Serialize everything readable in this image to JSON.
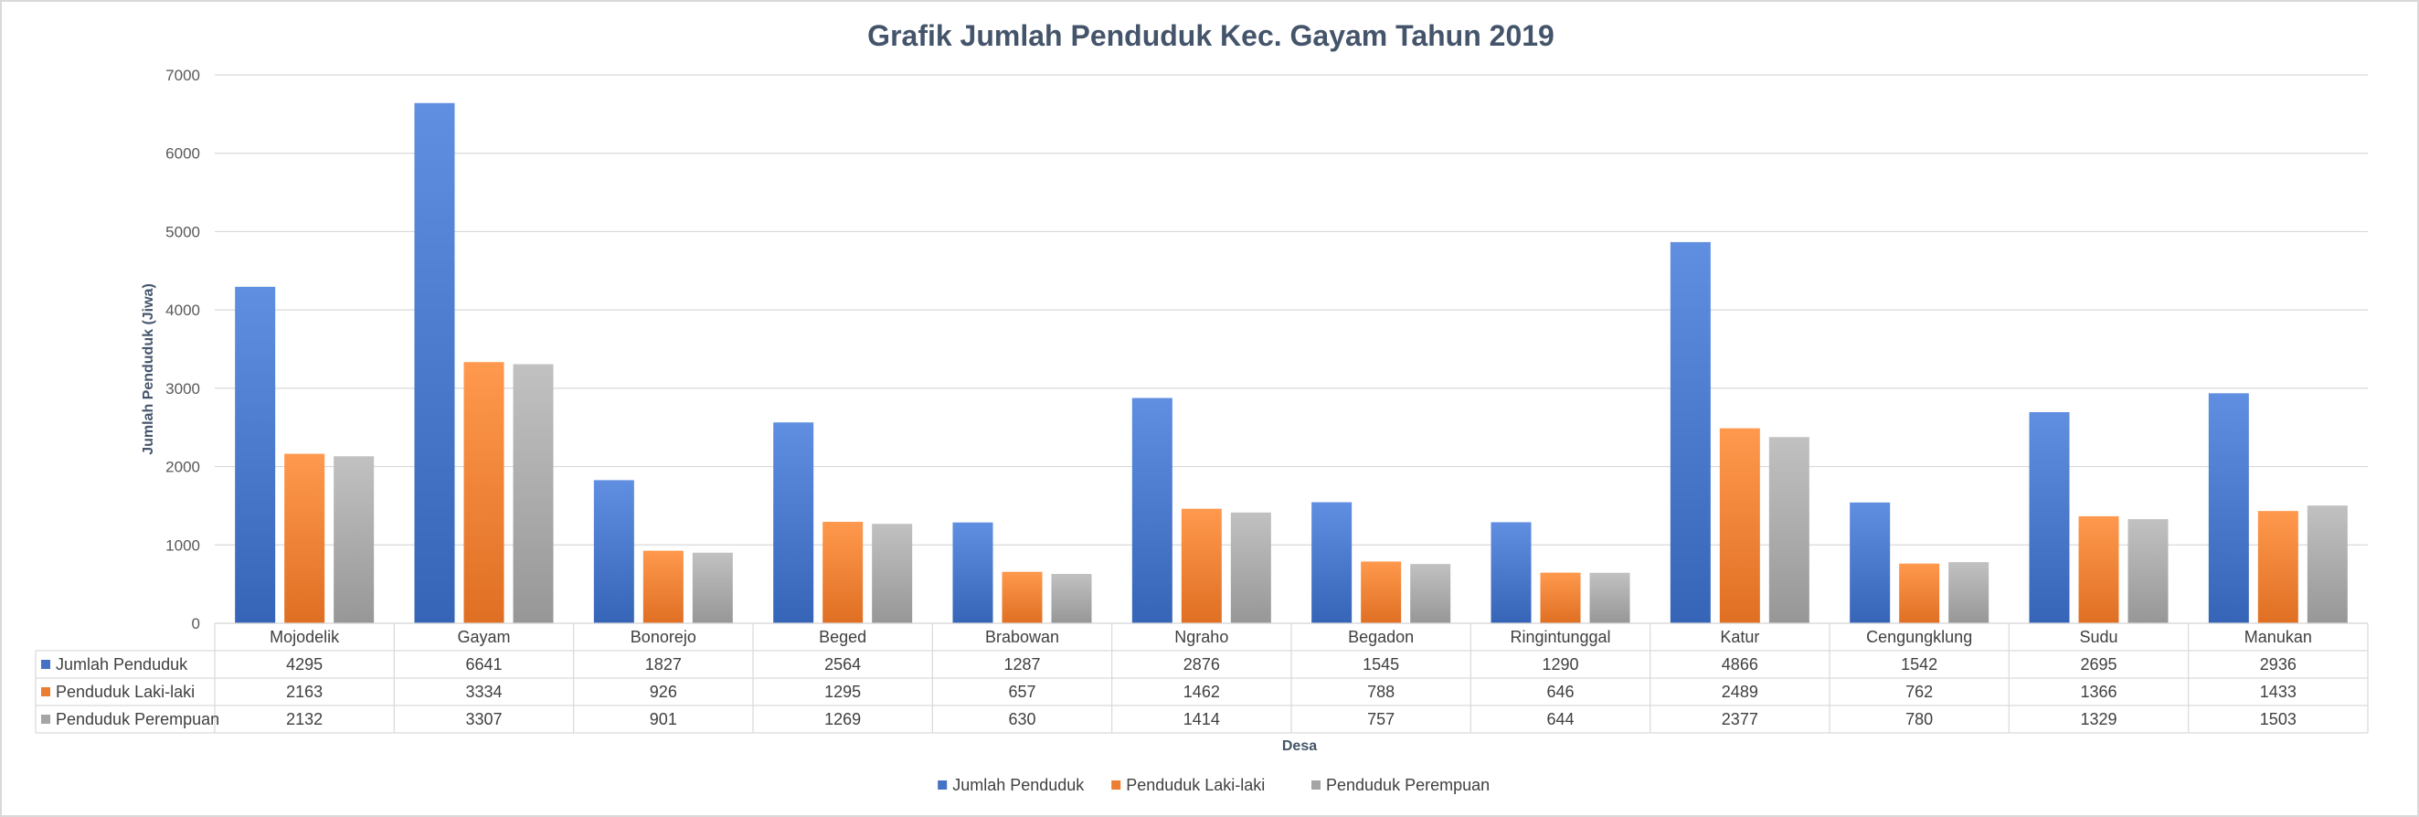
{
  "chart_data": {
    "type": "bar",
    "title": "Grafik Jumlah Penduduk Kec. Gayam Tahun 2019",
    "xlabel": "Desa",
    "ylabel": "Jumlah Penduduk (Jiwa)",
    "ylim": [
      0,
      7000
    ],
    "yticks": [
      0,
      1000,
      2000,
      3000,
      4000,
      5000,
      6000,
      7000
    ],
    "grid": true,
    "legend_position": "bottom",
    "data_table": true,
    "categories": [
      "Mojodelik",
      "Gayam",
      "Bonorejo",
      "Beged",
      "Brabowan",
      "Ngraho",
      "Begadon",
      "Ringintunggal",
      "Katur",
      "Cengungklung",
      "Sudu",
      "Manukan"
    ],
    "series": [
      {
        "name": "Jumlah Penduduk",
        "color": "#4472c4",
        "values": [
          4295,
          6641,
          1827,
          2564,
          1287,
          2876,
          1545,
          1290,
          4866,
          1542,
          2695,
          2936
        ]
      },
      {
        "name": "Penduduk Laki-laki",
        "color": "#ed7d31",
        "values": [
          2163,
          3334,
          926,
          1295,
          657,
          1462,
          788,
          646,
          2489,
          762,
          1366,
          1433
        ]
      },
      {
        "name": "Penduduk Perempuan",
        "color": "#a5a5a5",
        "values": [
          2132,
          3307,
          901,
          1269,
          630,
          1414,
          757,
          644,
          2377,
          780,
          1329,
          1503
        ]
      }
    ]
  }
}
